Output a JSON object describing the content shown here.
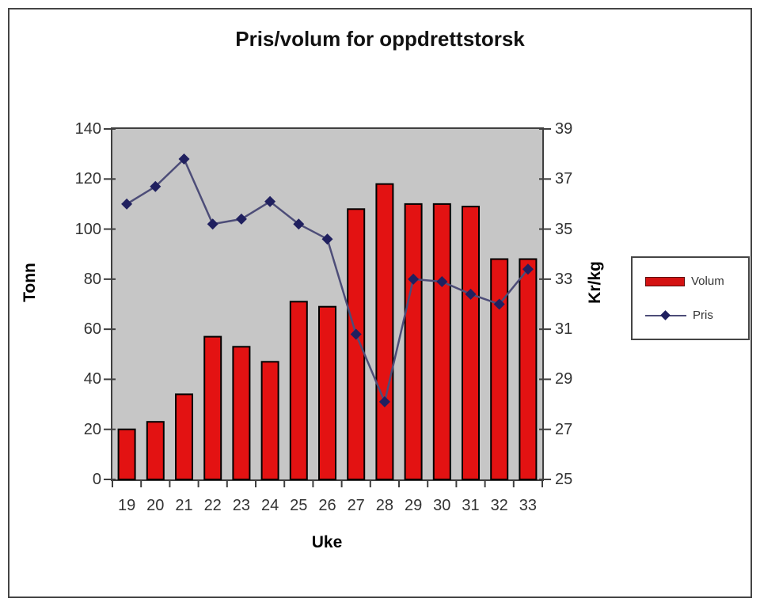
{
  "chart_data": {
    "type": "combo-bar-line",
    "title": "Pris/volum for oppdrettstorsk",
    "xlabel": "Uke",
    "categories": [
      "19",
      "20",
      "21",
      "22",
      "23",
      "24",
      "25",
      "26",
      "27",
      "28",
      "29",
      "30",
      "31",
      "32",
      "33"
    ],
    "series": [
      {
        "name": "Volum",
        "type": "bar",
        "axis": "left",
        "color": "#e31212",
        "border_color": "#000000",
        "values": [
          20,
          23,
          34,
          57,
          53,
          47,
          71,
          69,
          108,
          118,
          110,
          110,
          109,
          88,
          88
        ]
      },
      {
        "name": "Pris",
        "type": "line",
        "axis": "right",
        "line_color": "#4d4d78",
        "marker_color": "#20205f",
        "marker": "diamond",
        "values": [
          36.0,
          36.7,
          37.8,
          35.2,
          35.4,
          36.1,
          35.2,
          34.6,
          30.8,
          28.1,
          33.0,
          32.9,
          32.4,
          32.0,
          33.4
        ]
      }
    ],
    "axes": {
      "left": {
        "label": "Tonn",
        "min": 0,
        "max": 140,
        "ticks": [
          0,
          20,
          40,
          60,
          80,
          100,
          120,
          140
        ]
      },
      "right": {
        "label": "Kr/kg",
        "min": 25,
        "max": 39,
        "ticks": [
          25,
          27,
          29,
          31,
          33,
          35,
          37,
          39
        ]
      }
    },
    "legend": {
      "position": "right",
      "items": [
        "Volum",
        "Pris"
      ]
    },
    "colors": {
      "plot_background": "#c6c6c6",
      "axis_line": "#3f3f3f",
      "tick_text": "#333333",
      "frame_border": "#454545"
    },
    "grid": "off"
  }
}
